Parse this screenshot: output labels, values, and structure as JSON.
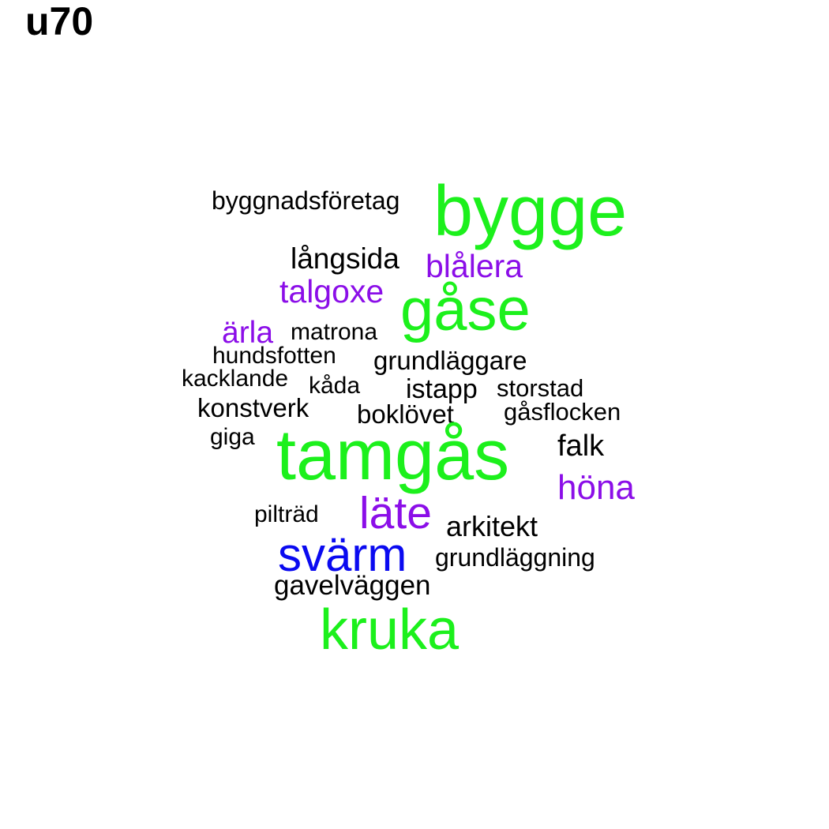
{
  "title": "u70",
  "colors": {
    "green": "#1cf01c",
    "purple": "#8b0ee8",
    "blue": "#0a0af0",
    "black": "#000000"
  },
  "words": [
    {
      "text": "byggnadsföretag",
      "color": "black"
    },
    {
      "text": "bygge",
      "color": "green"
    },
    {
      "text": "långsida",
      "color": "black"
    },
    {
      "text": "blålera",
      "color": "purple"
    },
    {
      "text": "talgoxe",
      "color": "purple"
    },
    {
      "text": "gåse",
      "color": "green"
    },
    {
      "text": "ärla",
      "color": "purple"
    },
    {
      "text": "matrona",
      "color": "black"
    },
    {
      "text": "hundsfotten",
      "color": "black"
    },
    {
      "text": "grundläggare",
      "color": "black"
    },
    {
      "text": "kacklande",
      "color": "black"
    },
    {
      "text": "kåda",
      "color": "black"
    },
    {
      "text": "istapp",
      "color": "black"
    },
    {
      "text": "storstad",
      "color": "black"
    },
    {
      "text": "konstverk",
      "color": "black"
    },
    {
      "text": "boklövet",
      "color": "black"
    },
    {
      "text": "gåsflocken",
      "color": "black"
    },
    {
      "text": "giga",
      "color": "black"
    },
    {
      "text": "tamgås",
      "color": "green"
    },
    {
      "text": "falk",
      "color": "black"
    },
    {
      "text": "höna",
      "color": "purple"
    },
    {
      "text": "pilträd",
      "color": "black"
    },
    {
      "text": "läte",
      "color": "purple"
    },
    {
      "text": "arkitekt",
      "color": "black"
    },
    {
      "text": "svärm",
      "color": "blue"
    },
    {
      "text": "grundläggning",
      "color": "black"
    },
    {
      "text": "gavelväggen",
      "color": "black"
    },
    {
      "text": "kruka",
      "color": "green"
    }
  ]
}
